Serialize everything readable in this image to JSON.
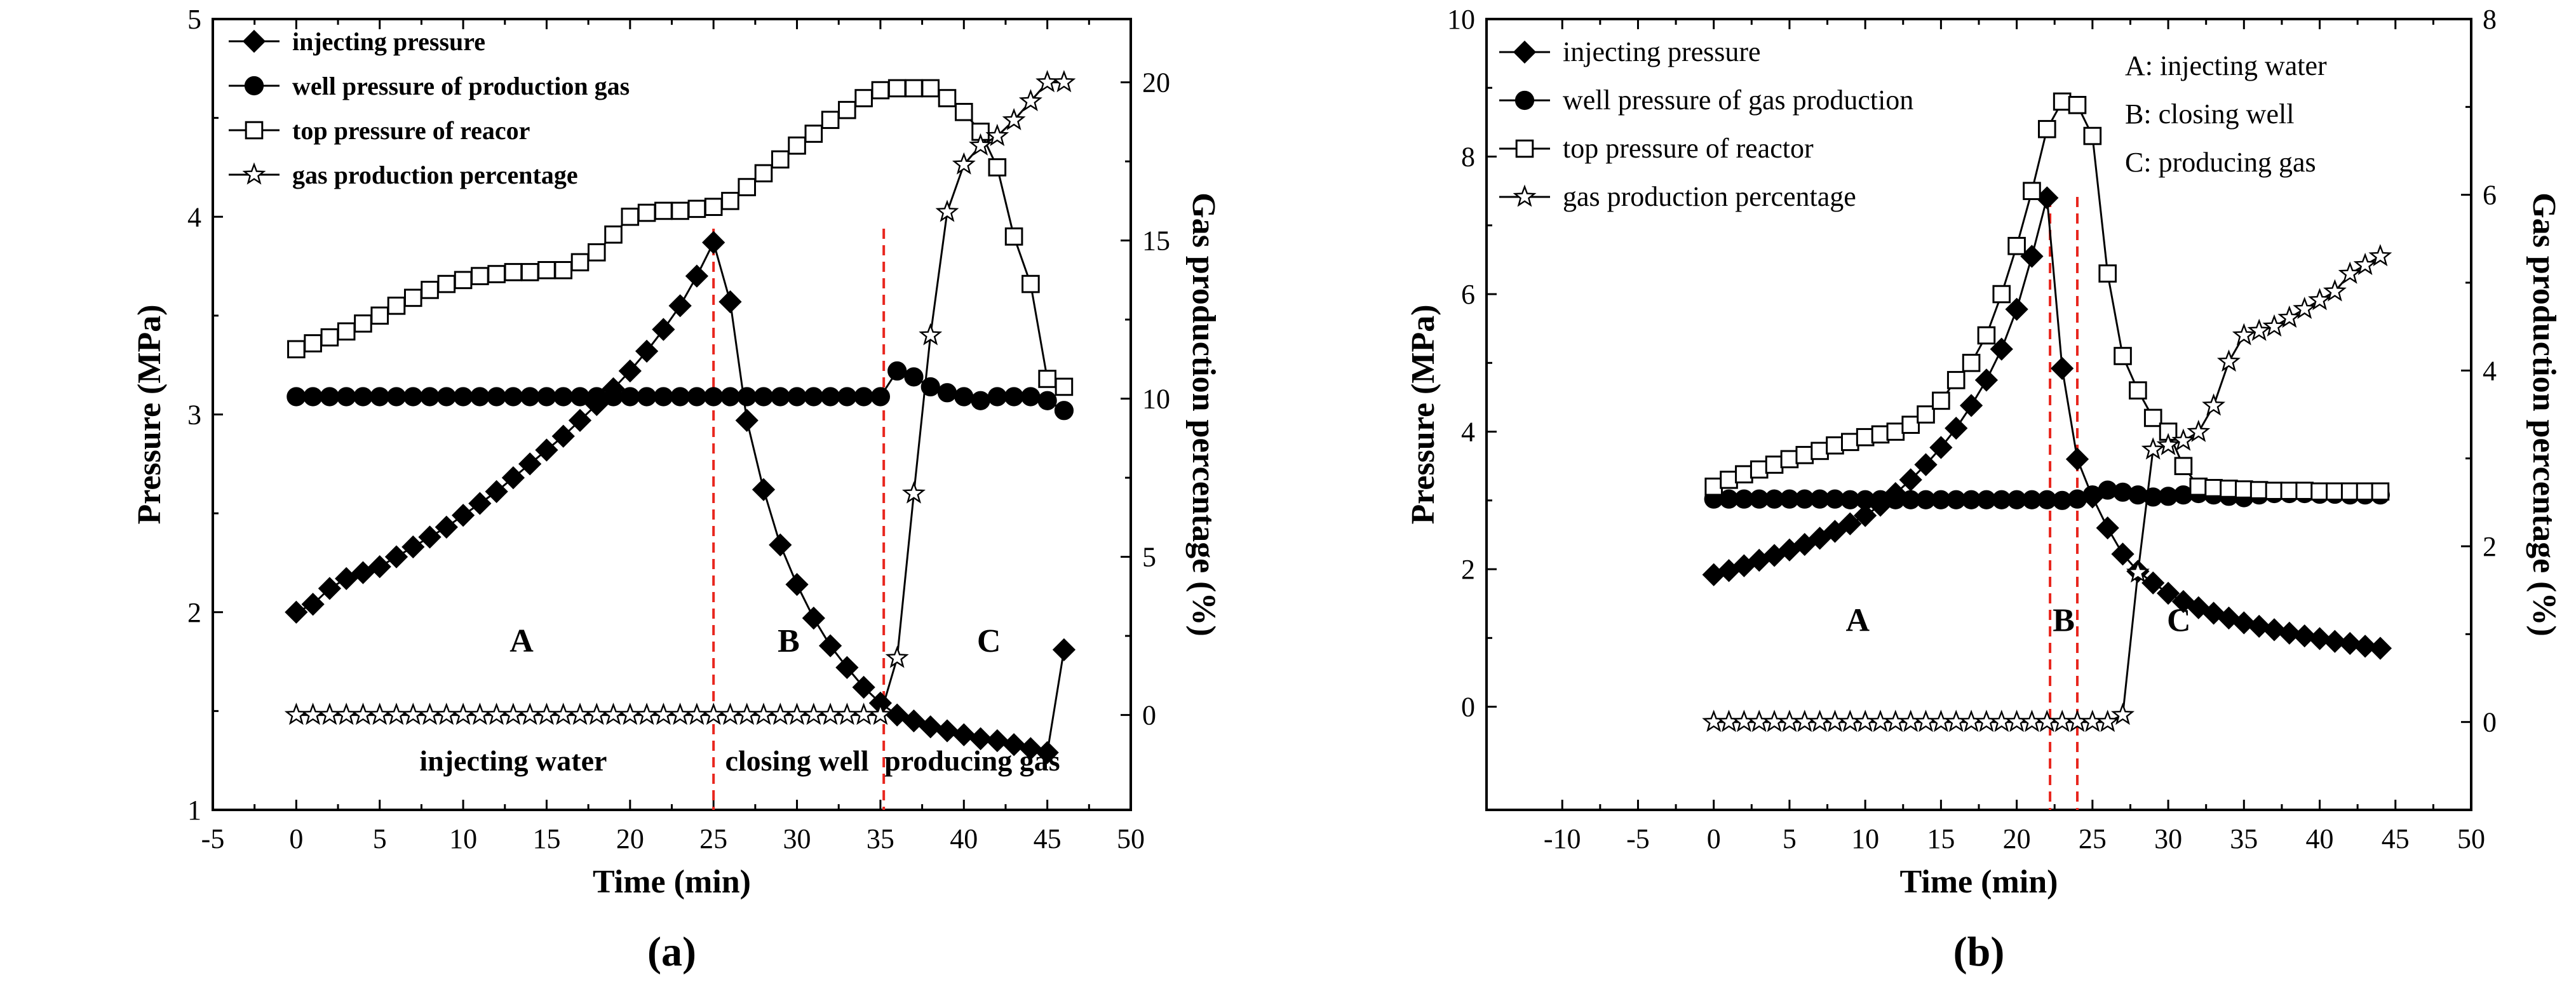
{
  "colors": {
    "axis": "#000000",
    "marker": "#000000",
    "guide": "#e8261e",
    "background": "#ffffff"
  },
  "chart_data": [
    {
      "type": "line",
      "panel_label": "(a)",
      "xlabel": "Time (min)",
      "ylabel_left": "Pressure (MPa)",
      "ylabel_right": "Gas production percentage (%)",
      "xlim": [
        -5,
        50
      ],
      "ylim_left": [
        1,
        5
      ],
      "ylim_right": [
        -3,
        22
      ],
      "x_ticks": [
        -5,
        0,
        5,
        10,
        15,
        20,
        25,
        30,
        35,
        40,
        45,
        50
      ],
      "y_left_ticks": [
        1,
        2,
        3,
        4,
        5
      ],
      "y_right_ticks": [
        0,
        5,
        10,
        15,
        20
      ],
      "legend": [
        "injecting pressure",
        "well pressure of production gas",
        "top pressure of reacor",
        "gas production percentage"
      ],
      "legend_bold": true,
      "phase_lines": [
        25,
        35.2
      ],
      "phase_letters": [
        {
          "text": "A",
          "x": 13.5,
          "y": 1.8
        },
        {
          "text": "B",
          "x": 29.5,
          "y": 1.8
        },
        {
          "text": "C",
          "x": 41.5,
          "y": 1.8
        }
      ],
      "phase_texts": [
        {
          "text": "injecting water",
          "x": 13,
          "y": 1.2
        },
        {
          "text": "closing well",
          "x": 30,
          "y": 1.2
        },
        {
          "text": "producing gas",
          "x": 40.5,
          "y": 1.2
        }
      ],
      "series": [
        {
          "name": "injecting pressure",
          "axis": "left",
          "marker": "diamond",
          "fill": true,
          "x": [
            0,
            1,
            2,
            3,
            4,
            5,
            6,
            7,
            8,
            9,
            10,
            11,
            12,
            13,
            14,
            15,
            16,
            17,
            18,
            19,
            20,
            21,
            22,
            23,
            24,
            25,
            26,
            27,
            28,
            29,
            30,
            31,
            32,
            33,
            34,
            35,
            36,
            37,
            38,
            39,
            40,
            41,
            42,
            43,
            44,
            45,
            46
          ],
          "y": [
            2.0,
            2.04,
            2.12,
            2.17,
            2.2,
            2.23,
            2.28,
            2.33,
            2.38,
            2.43,
            2.49,
            2.55,
            2.61,
            2.68,
            2.75,
            2.82,
            2.89,
            2.97,
            3.05,
            3.13,
            3.22,
            3.32,
            3.43,
            3.55,
            3.7,
            3.87,
            3.57,
            2.97,
            2.62,
            2.34,
            2.14,
            1.97,
            1.83,
            1.72,
            1.62,
            1.54,
            1.48,
            1.45,
            1.42,
            1.4,
            1.38,
            1.36,
            1.35,
            1.33,
            1.31,
            1.29,
            1.81
          ]
        },
        {
          "name": "well pressure of production gas",
          "axis": "left",
          "marker": "circle",
          "fill": true,
          "x": [
            0,
            1,
            2,
            3,
            4,
            5,
            6,
            7,
            8,
            9,
            10,
            11,
            12,
            13,
            14,
            15,
            16,
            17,
            18,
            19,
            20,
            21,
            22,
            23,
            24,
            25,
            26,
            27,
            28,
            29,
            30,
            31,
            32,
            33,
            34,
            35,
            36,
            37,
            38,
            39,
            40,
            41,
            42,
            43,
            44,
            45,
            46
          ],
          "y": [
            3.09,
            3.09,
            3.09,
            3.09,
            3.09,
            3.09,
            3.09,
            3.09,
            3.09,
            3.09,
            3.09,
            3.09,
            3.09,
            3.09,
            3.09,
            3.09,
            3.09,
            3.09,
            3.09,
            3.09,
            3.09,
            3.09,
            3.09,
            3.09,
            3.09,
            3.09,
            3.09,
            3.09,
            3.09,
            3.09,
            3.09,
            3.09,
            3.09,
            3.09,
            3.09,
            3.09,
            3.22,
            3.19,
            3.14,
            3.11,
            3.09,
            3.07,
            3.09,
            3.09,
            3.09,
            3.07,
            3.02
          ]
        },
        {
          "name": "top pressure of reacor",
          "axis": "left",
          "marker": "square",
          "fill": false,
          "x": [
            0,
            1,
            2,
            3,
            4,
            5,
            6,
            7,
            8,
            9,
            10,
            11,
            12,
            13,
            14,
            15,
            16,
            17,
            18,
            19,
            20,
            21,
            22,
            23,
            24,
            25,
            26,
            27,
            28,
            29,
            30,
            31,
            32,
            33,
            34,
            35,
            36,
            37,
            38,
            39,
            40,
            41,
            42,
            43,
            44,
            45,
            46
          ],
          "y": [
            3.33,
            3.36,
            3.39,
            3.42,
            3.46,
            3.5,
            3.55,
            3.59,
            3.63,
            3.66,
            3.68,
            3.7,
            3.71,
            3.72,
            3.72,
            3.73,
            3.73,
            3.77,
            3.82,
            3.91,
            4.0,
            4.02,
            4.03,
            4.03,
            4.04,
            4.05,
            4.08,
            4.15,
            4.22,
            4.29,
            4.36,
            4.42,
            4.49,
            4.54,
            4.6,
            4.64,
            4.65,
            4.65,
            4.65,
            4.6,
            4.53,
            4.43,
            4.25,
            3.9,
            3.66,
            3.18,
            3.14
          ]
        },
        {
          "name": "gas production percentage",
          "axis": "right",
          "marker": "star",
          "fill": false,
          "x": [
            0,
            1,
            2,
            3,
            4,
            5,
            6,
            7,
            8,
            9,
            10,
            11,
            12,
            13,
            14,
            15,
            16,
            17,
            18,
            19,
            20,
            21,
            22,
            23,
            24,
            25,
            26,
            27,
            28,
            29,
            30,
            31,
            32,
            33,
            34,
            35,
            36,
            37,
            38,
            39,
            40,
            41,
            42,
            43,
            44,
            45,
            46
          ],
          "y": [
            0,
            0,
            0,
            0,
            0,
            0,
            0,
            0,
            0,
            0,
            0,
            0,
            0,
            0,
            0,
            0,
            0,
            0,
            0,
            0,
            0,
            0,
            0,
            0,
            0,
            0,
            0,
            0,
            0,
            0,
            0,
            0,
            0,
            0,
            0,
            0,
            1.8,
            7.0,
            12.0,
            15.9,
            17.4,
            18.0,
            18.3,
            18.8,
            19.4,
            20.0,
            20.0
          ]
        }
      ]
    },
    {
      "type": "line",
      "panel_label": "(b)",
      "xlabel": "Time (min)",
      "ylabel_left": "Pressure (MPa)",
      "ylabel_right": "Gas production percentage (%)",
      "xlim": [
        -15,
        50
      ],
      "ylim_left": [
        -1.5,
        10
      ],
      "ylim_right": [
        -1,
        8
      ],
      "x_ticks": [
        -10,
        -5,
        0,
        5,
        10,
        15,
        20,
        25,
        30,
        35,
        40,
        45,
        50
      ],
      "y_left_ticks": [
        0,
        2,
        4,
        6,
        8,
        10
      ],
      "y_right_ticks": [
        0,
        2,
        4,
        6,
        8
      ],
      "legend": [
        "injecting pressure",
        "well pressure of gas production",
        "top pressure of reactor",
        "gas production percentage"
      ],
      "legend_bold": false,
      "annotations": [
        "A: injecting water",
        "B: closing well",
        "C: producing gas"
      ],
      "phase_lines": [
        22.2,
        24
      ],
      "phase_letters": [
        {
          "text": "A",
          "x": 9.5,
          "y": 1.1
        },
        {
          "text": "B",
          "x": 23.1,
          "y": 1.1
        },
        {
          "text": "C",
          "x": 30.7,
          "y": 1.1
        }
      ],
      "series": [
        {
          "name": "injecting pressure",
          "axis": "left",
          "marker": "diamond",
          "fill": true,
          "x": [
            0,
            1,
            2,
            3,
            4,
            5,
            6,
            7,
            8,
            9,
            10,
            11,
            12,
            13,
            14,
            15,
            16,
            17,
            18,
            19,
            20,
            21,
            22,
            23,
            24,
            25,
            26,
            27,
            28,
            29,
            30,
            31,
            32,
            33,
            34,
            35,
            36,
            37,
            38,
            39,
            40,
            41,
            42,
            43,
            44
          ],
          "y": [
            1.92,
            1.98,
            2.05,
            2.13,
            2.2,
            2.28,
            2.36,
            2.45,
            2.55,
            2.66,
            2.78,
            2.93,
            3.1,
            3.3,
            3.52,
            3.77,
            4.05,
            4.38,
            4.75,
            5.2,
            5.78,
            6.55,
            7.4,
            4.92,
            3.6,
            3.05,
            2.6,
            2.22,
            1.97,
            1.8,
            1.65,
            1.53,
            1.44,
            1.36,
            1.29,
            1.22,
            1.17,
            1.12,
            1.07,
            1.03,
            0.99,
            0.95,
            0.92,
            0.88,
            0.85
          ]
        },
        {
          "name": "well pressure of gas production",
          "axis": "left",
          "marker": "circle",
          "fill": true,
          "x": [
            0,
            1,
            2,
            3,
            4,
            5,
            6,
            7,
            8,
            9,
            10,
            11,
            12,
            13,
            14,
            15,
            16,
            17,
            18,
            19,
            20,
            21,
            22,
            23,
            24,
            25,
            26,
            27,
            28,
            29,
            30,
            31,
            32,
            33,
            34,
            35,
            36,
            37,
            38,
            39,
            40,
            41,
            42,
            43,
            44
          ],
          "y": [
            3.02,
            3.02,
            3.02,
            3.02,
            3.02,
            3.02,
            3.02,
            3.02,
            3.02,
            3.01,
            3.01,
            3.01,
            3.01,
            3.01,
            3.01,
            3.01,
            3.01,
            3.01,
            3.01,
            3.01,
            3.01,
            3.01,
            3.01,
            3.0,
            3.02,
            3.08,
            3.15,
            3.12,
            3.08,
            3.05,
            3.06,
            3.08,
            3.1,
            3.08,
            3.06,
            3.04,
            3.08,
            3.1,
            3.1,
            3.1,
            3.09,
            3.09,
            3.08,
            3.08,
            3.08
          ]
        },
        {
          "name": "top pressure of reactor",
          "axis": "left",
          "marker": "square",
          "fill": false,
          "x": [
            0,
            1,
            2,
            3,
            4,
            5,
            6,
            7,
            8,
            9,
            10,
            11,
            12,
            13,
            14,
            15,
            16,
            17,
            18,
            19,
            20,
            21,
            22,
            23,
            24,
            25,
            26,
            27,
            28,
            29,
            30,
            31,
            32,
            33,
            34,
            35,
            36,
            37,
            38,
            39,
            40,
            41,
            42,
            43,
            44
          ],
          "y": [
            3.2,
            3.3,
            3.38,
            3.45,
            3.52,
            3.6,
            3.66,
            3.72,
            3.8,
            3.85,
            3.92,
            3.96,
            4.0,
            4.1,
            4.25,
            4.45,
            4.75,
            5.0,
            5.4,
            6.0,
            6.7,
            7.5,
            8.4,
            8.8,
            8.75,
            8.3,
            6.3,
            5.1,
            4.6,
            4.2,
            4.0,
            3.5,
            3.2,
            3.18,
            3.17,
            3.16,
            3.15,
            3.14,
            3.14,
            3.14,
            3.13,
            3.13,
            3.13,
            3.13,
            3.13
          ]
        },
        {
          "name": "gas production percentage",
          "axis": "right",
          "marker": "star",
          "fill": false,
          "x": [
            0,
            1,
            2,
            3,
            4,
            5,
            6,
            7,
            8,
            9,
            10,
            11,
            12,
            13,
            14,
            15,
            16,
            17,
            18,
            19,
            20,
            21,
            22,
            23,
            24,
            25,
            26,
            27,
            28,
            29,
            30,
            31,
            32,
            33,
            34,
            35,
            36,
            37,
            38,
            39,
            40,
            41,
            42,
            43,
            44
          ],
          "y": [
            0,
            0,
            0,
            0,
            0,
            0,
            0,
            0,
            0,
            0,
            0,
            0,
            0,
            0,
            0,
            0,
            0,
            0,
            0,
            0,
            0,
            0,
            0,
            0,
            0,
            0,
            0,
            0.08,
            1.7,
            3.1,
            3.15,
            3.2,
            3.3,
            3.6,
            4.1,
            4.4,
            4.45,
            4.5,
            4.6,
            4.7,
            4.8,
            4.9,
            5.1,
            5.2,
            5.3
          ]
        }
      ]
    }
  ]
}
